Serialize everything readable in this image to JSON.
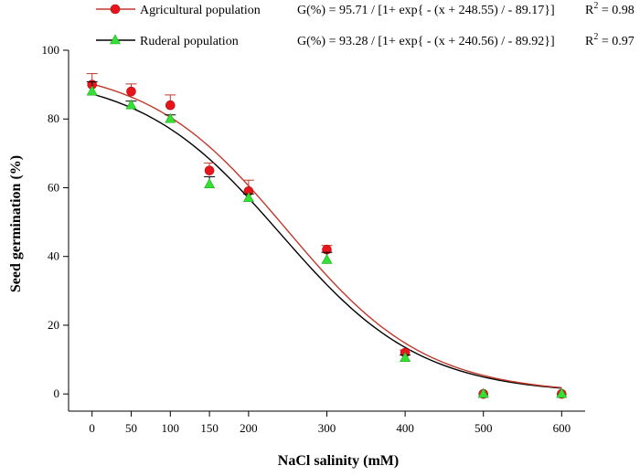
{
  "chart_data": {
    "type": "scatter",
    "title": "",
    "xlabel": "NaCl salinity (mM)",
    "ylabel": "Seed germination (%)",
    "xlim": [
      -30,
      630
    ],
    "ylim": [
      -5,
      100
    ],
    "xticks": [
      0,
      50,
      100,
      150,
      200,
      300,
      400,
      500,
      600
    ],
    "yticks": [
      0,
      20,
      40,
      60,
      80,
      100
    ],
    "xtick_labels": [
      "0",
      "50",
      "100",
      "150",
      "200",
      "300",
      "400",
      "500",
      "600"
    ],
    "ytick_labels": [
      "0",
      "20",
      "40",
      "60",
      "80",
      "100"
    ],
    "series": [
      {
        "name": "Agricultural population",
        "marker": "circle",
        "color": "#e8141b",
        "line_color": "#c0392b",
        "x": [
          0,
          50,
          100,
          150,
          200,
          300,
          400,
          500,
          600
        ],
        "y": [
          90,
          88,
          84,
          65,
          59,
          42,
          12,
          0,
          0
        ],
        "error": [
          3.2,
          2.2,
          3.0,
          2.2,
          3.2,
          1.2,
          0.8,
          0,
          0
        ],
        "fit": {
          "a": 95.71,
          "x0": 248.55,
          "b": 89.17
        },
        "equation": "G(%) = 95.71 /  [1+ exp{ - (x + 248.55) / - 89.17}]",
        "r2_label": "R",
        "r2_exp": "2",
        "r2_value": " = 0.98"
      },
      {
        "name": "Ruderal population",
        "marker": "triangle",
        "color": "#33e033",
        "line_color": "#000000",
        "x": [
          0,
          50,
          100,
          150,
          200,
          300,
          400,
          500,
          600
        ],
        "y": [
          88,
          84,
          80,
          61,
          57,
          39,
          10.5,
          0,
          0
        ],
        "error": [
          2.8,
          1.2,
          1.2,
          2.2,
          1.2,
          2.2,
          0.8,
          0,
          0
        ],
        "fit": {
          "a": 93.28,
          "x0": 240.56,
          "b": 89.92
        },
        "equation": "G(%) = 93.28 /  [1+ exp{ - (x + 240.56) / - 89.92}]",
        "r2_label": "R",
        "r2_exp": "2",
        "r2_value": " = 0.97"
      }
    ],
    "legend_position": "top-left"
  }
}
